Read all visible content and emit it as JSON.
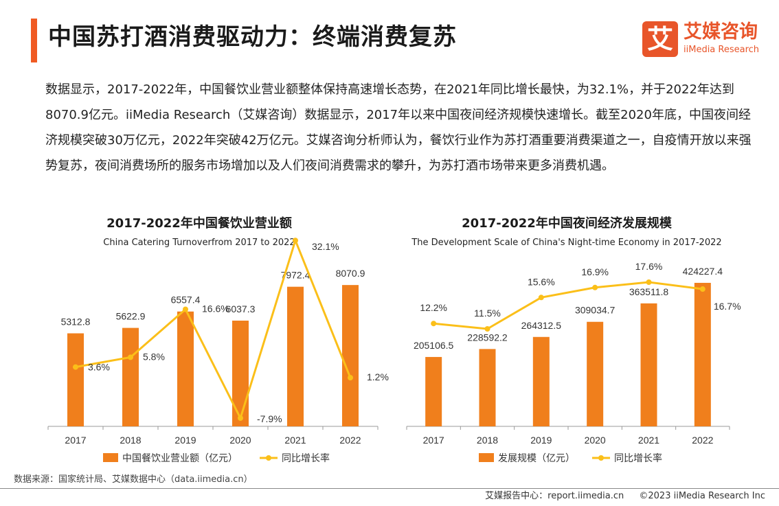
{
  "header": {
    "title": "中国苏打酒消费驱动力：终端消费复苏",
    "logo_mark": "艾",
    "logo_cn": "艾媒咨询",
    "logo_en": "iiMedia Research"
  },
  "paragraph": "数据显示，2017-2022年，中国餐饮业营业额整体保持高速增长态势，在2021年同比增长最快，为32.1%，并于2022年达到8070.9亿元。iiMedia Research（艾媒咨询）数据显示，2017年以来中国夜间经济规模快速增长。截至2020年底，中国夜间经济规模突破30万亿元，2022年突破42万亿元。艾媒咨询分析师认为，餐饮行业作为苏打酒重要消费渠道之一，自疫情开放以来强势复苏，夜间消费场所的服务市场增加以及人们夜间消费需求的攀升，为苏打酒市场带来更多消费机遇。",
  "chart_data": [
    {
      "type": "bar",
      "title": "2017-2022年中国餐饮业营业额",
      "subtitle": "China Catering Turnoverfrom 2017 to 2022",
      "categories": [
        "2017",
        "2018",
        "2019",
        "2020",
        "2021",
        "2022"
      ],
      "series": [
        {
          "name": "中国餐饮业营业额（亿元）",
          "type": "bar",
          "values": [
            5312.8,
            5622.9,
            6557.4,
            6037.3,
            7972.4,
            8070.9
          ],
          "labels": [
            "5312.8",
            "5622.9",
            "6557.4",
            "6037.3",
            "7972.4",
            "8070.9"
          ]
        },
        {
          "name": "同比增长率",
          "type": "line",
          "values": [
            3.6,
            5.8,
            16.6,
            -7.9,
            32.1,
            1.2
          ],
          "labels": [
            "3.6%",
            "5.8%",
            "16.6%",
            "-7.9%",
            "32.1%",
            "1.2%"
          ]
        }
      ],
      "legend": "bottom",
      "grid": false
    },
    {
      "type": "bar",
      "title": "2017-2022年中国夜间经济发展规模",
      "subtitle": "The Development Scale of China's Night-time Economy in 2017-2022",
      "categories": [
        "2017",
        "2018",
        "2019",
        "2020",
        "2021",
        "2022"
      ],
      "series": [
        {
          "name": "发展规模（亿元）",
          "type": "bar",
          "values": [
            205106.5,
            228592.2,
            264312.5,
            309034.7,
            363511.8,
            424227.4
          ],
          "labels": [
            "205106.5",
            "228592.2",
            "264312.5",
            "309034.7",
            "363511.8",
            "424227.4"
          ]
        },
        {
          "name": "同比增长率",
          "type": "line",
          "values": [
            12.2,
            11.5,
            15.6,
            16.9,
            17.6,
            16.7
          ],
          "labels": [
            "12.2%",
            "11.5%",
            "15.6%",
            "16.9%",
            "17.6%",
            "16.7%"
          ]
        }
      ],
      "legend": "bottom",
      "grid": false
    }
  ],
  "source": "数据来源：国家统计局、艾媒数据中心（data.iimedia.cn）",
  "footer": {
    "report_center": "艾媒报告中心：report.iimedia.cn",
    "copyright": "©2023  iiMedia Research  Inc"
  },
  "colors": {
    "accent": "#f05a22",
    "bar": "#f07f1c",
    "line": "#fbbf19",
    "axis": "#999999"
  }
}
